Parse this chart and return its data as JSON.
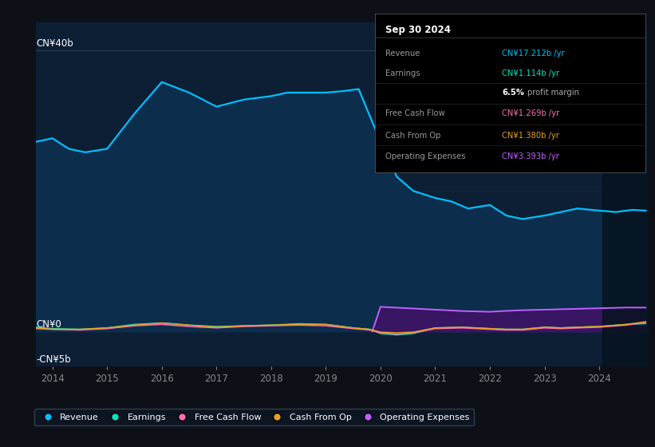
{
  "bg_color": "#0d1117",
  "plot_bg_color": "#0d1f35",
  "right_shade_color": "#0a1520",
  "title": "Sep 30 2024",
  "y_label_top": "CN¥40b",
  "y_label_zero": "CN¥0",
  "y_label_bottom": "-CN¥5b",
  "x_ticks": [
    2014,
    2015,
    2016,
    2017,
    2018,
    2019,
    2020,
    2021,
    2022,
    2023,
    2024
  ],
  "ylim_low": -5000000000.0,
  "ylim_high": 44000000000.0,
  "revenue_color": "#00bfff",
  "revenue_fill_color": "#0d2d4d",
  "earnings_color": "#00e5c0",
  "fcf_color": "#ff6eb4",
  "cashfromop_color": "#e8a020",
  "opex_color": "#c060ff",
  "opex_fill_color": "#3d1466",
  "legend_items": [
    {
      "label": "Revenue",
      "color": "#00bfff"
    },
    {
      "label": "Earnings",
      "color": "#00e5c0"
    },
    {
      "label": "Free Cash Flow",
      "color": "#ff6eb4"
    },
    {
      "label": "Cash From Op",
      "color": "#e8a020"
    },
    {
      "label": "Operating Expenses",
      "color": "#c060ff"
    }
  ],
  "revenue_x": [
    2013.7,
    2014.0,
    2014.3,
    2014.6,
    2015.0,
    2015.5,
    2016.0,
    2016.5,
    2017.0,
    2017.5,
    2018.0,
    2018.3,
    2018.6,
    2019.0,
    2019.3,
    2019.6,
    2020.0,
    2020.3,
    2020.6,
    2021.0,
    2021.3,
    2021.6,
    2022.0,
    2022.3,
    2022.6,
    2023.0,
    2023.3,
    2023.6,
    2024.0,
    2024.3,
    2024.6,
    2024.85
  ],
  "revenue_y": [
    27000000000.0,
    27500000000.0,
    26000000000.0,
    25500000000.0,
    26000000000.0,
    31000000000.0,
    35500000000.0,
    34000000000.0,
    32000000000.0,
    33000000000.0,
    33500000000.0,
    34000000000.0,
    34000000000.0,
    34000000000.0,
    34200000000.0,
    34500000000.0,
    27000000000.0,
    22000000000.0,
    20000000000.0,
    19000000000.0,
    18500000000.0,
    17500000000.0,
    18000000000.0,
    16500000000.0,
    16000000000.0,
    16500000000.0,
    17000000000.0,
    17500000000.0,
    17200000000.0,
    17000000000.0,
    17300000000.0,
    17200000000.0
  ],
  "earnings_x": [
    2013.7,
    2014.0,
    2014.5,
    2015.0,
    2015.5,
    2016.0,
    2016.5,
    2017.0,
    2017.5,
    2018.0,
    2018.5,
    2019.0,
    2019.5,
    2019.8,
    2020.0,
    2020.3,
    2020.6,
    2021.0,
    2021.5,
    2022.0,
    2022.3,
    2022.6,
    2023.0,
    2023.3,
    2023.6,
    2024.0,
    2024.5,
    2024.85
  ],
  "earnings_y": [
    600000000.0,
    400000000.0,
    300000000.0,
    500000000.0,
    1000000000.0,
    1200000000.0,
    900000000.0,
    700000000.0,
    800000000.0,
    900000000.0,
    1100000000.0,
    1000000000.0,
    500000000.0,
    300000000.0,
    -300000000.0,
    -500000000.0,
    -300000000.0,
    500000000.0,
    600000000.0,
    400000000.0,
    300000000.0,
    300000000.0,
    600000000.0,
    500000000.0,
    600000000.0,
    700000000.0,
    1000000000.0,
    1114000000.0
  ],
  "fcf_x": [
    2013.7,
    2014.0,
    2014.5,
    2015.0,
    2015.5,
    2016.0,
    2016.5,
    2017.0,
    2017.5,
    2018.0,
    2018.5,
    2019.0,
    2019.5,
    2019.8,
    2020.0,
    2020.3,
    2020.6,
    2021.0,
    2021.5,
    2022.0,
    2022.3,
    2022.6,
    2023.0,
    2023.3,
    2023.6,
    2024.0,
    2024.5,
    2024.85
  ],
  "fcf_y": [
    400000000.0,
    300000000.0,
    200000000.0,
    400000000.0,
    800000000.0,
    1000000000.0,
    700000000.0,
    500000000.0,
    700000000.0,
    800000000.0,
    900000000.0,
    800000000.0,
    400000000.0,
    200000000.0,
    -200000000.0,
    -400000000.0,
    -200000000.0,
    400000000.0,
    500000000.0,
    300000000.0,
    200000000.0,
    200000000.0,
    500000000.0,
    400000000.0,
    500000000.0,
    600000000.0,
    900000000.0,
    1269000000.0
  ],
  "cashfromop_x": [
    2013.7,
    2014.0,
    2014.5,
    2015.0,
    2015.5,
    2016.0,
    2016.5,
    2017.0,
    2017.5,
    2018.0,
    2018.5,
    2019.0,
    2019.5,
    2019.8,
    2020.0,
    2020.3,
    2020.6,
    2021.0,
    2021.5,
    2022.0,
    2022.3,
    2022.6,
    2023.0,
    2023.3,
    2023.6,
    2024.0,
    2024.5,
    2024.85
  ],
  "cashfromop_y": [
    500000000.0,
    300000000.0,
    300000000.0,
    500000000.0,
    900000000.0,
    1200000000.0,
    900000000.0,
    600000000.0,
    800000000.0,
    900000000.0,
    1000000000.0,
    1000000000.0,
    500000000.0,
    300000000.0,
    -100000000.0,
    -200000000.0,
    -100000000.0,
    500000000.0,
    600000000.0,
    400000000.0,
    300000000.0,
    300000000.0,
    600000000.0,
    500000000.0,
    600000000.0,
    700000000.0,
    1000000000.0,
    1380000000.0
  ],
  "opex_x": [
    2019.85,
    2020.0,
    2020.5,
    2021.0,
    2021.5,
    2022.0,
    2022.5,
    2023.0,
    2023.5,
    2024.0,
    2024.5,
    2024.85
  ],
  "opex_y": [
    0.0,
    3500000000.0,
    3300000000.0,
    3100000000.0,
    2900000000.0,
    2800000000.0,
    3000000000.0,
    3100000000.0,
    3200000000.0,
    3300000000.0,
    3400000000.0,
    3393000000.0
  ],
  "info_date": "Sep 30 2024",
  "info_rows": [
    {
      "label": "Revenue",
      "value": "CN¥17.212b /yr",
      "color": "#00bfff"
    },
    {
      "label": "Earnings",
      "value": "CN¥1.114b /yr",
      "color": "#00e5c0"
    },
    {
      "label": "",
      "value": "6.5% profit margin",
      "color": "#cccccc"
    },
    {
      "label": "Free Cash Flow",
      "value": "CN¥1.269b /yr",
      "color": "#ff6eb4"
    },
    {
      "label": "Cash From Op",
      "value": "CN¥1.380b /yr",
      "color": "#e8a020"
    },
    {
      "label": "Operating Expenses",
      "value": "CN¥3.393b /yr",
      "color": "#c060ff"
    }
  ]
}
